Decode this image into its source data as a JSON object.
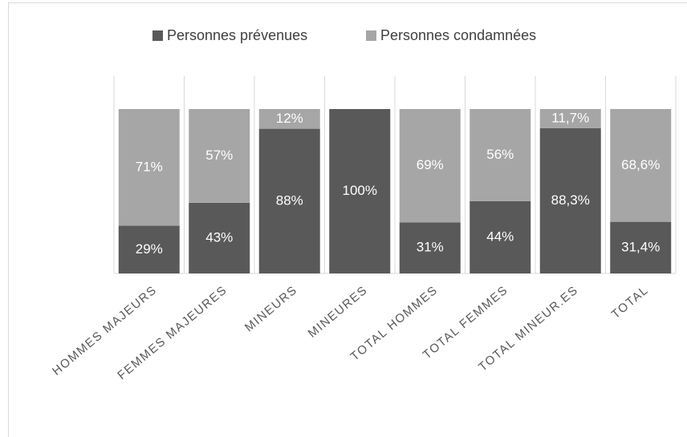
{
  "chart_data": {
    "type": "bar",
    "stacked": true,
    "categories": [
      "HOMMES MAJEURS",
      "FEMMES MAJEURES",
      "MINEURS",
      "MINEURES",
      "TOTAL HOMMES",
      "TOTAL FEMMES",
      "TOTAL MINEUR.ES",
      "TOTAL"
    ],
    "series": [
      {
        "name": "Personnes prévenues",
        "color": "#595959",
        "values": [
          29,
          43,
          88,
          100,
          31,
          44,
          88.3,
          31.4
        ],
        "value_labels": [
          "29%",
          "43%",
          "88%",
          "100%",
          "31%",
          "44%",
          "88,3%",
          "31,4%"
        ]
      },
      {
        "name": "Personnes condamnées",
        "color": "#a6a6a6",
        "values": [
          71,
          57,
          12,
          0,
          69,
          56,
          11.7,
          68.6
        ],
        "value_labels": [
          "71%",
          "57%",
          "12%",
          null,
          "69%",
          "56%",
          "11,7%",
          "68,6%"
        ]
      }
    ],
    "legend": "top",
    "grid": true
  }
}
